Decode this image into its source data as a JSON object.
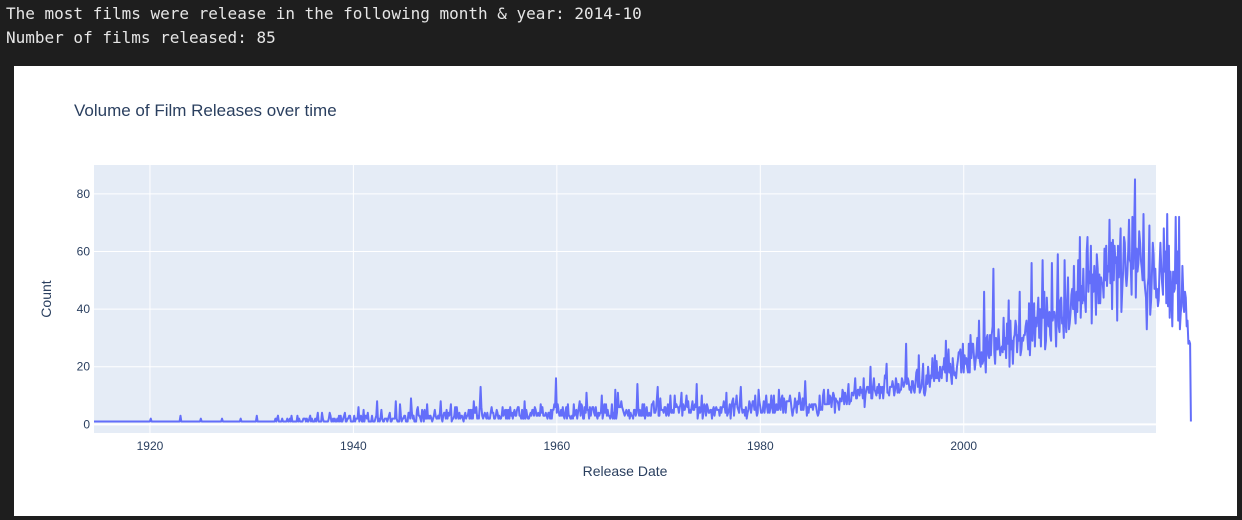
{
  "output": {
    "line1": "The most films were release in the following month & year: 2014-10",
    "line2": "Number of films released: 85"
  },
  "chart_data": {
    "type": "line",
    "title": "Volume of Film Releases over time",
    "xlabel": "Release Date",
    "ylabel": "Count",
    "xlim": [
      1914.5,
      2018.9
    ],
    "ylim": [
      -3,
      90
    ],
    "x_ticks": [
      "1920",
      "1940",
      "1960",
      "1980",
      "2000"
    ],
    "y_ticks": [
      "0",
      "20",
      "40",
      "60",
      "80"
    ],
    "grid": true,
    "line_color": "#636efa",
    "series": [
      {
        "x_start": "1914-07",
        "interval": "monthly",
        "values": [
          1,
          1,
          1,
          1,
          1,
          1,
          1,
          1,
          1,
          1,
          1,
          1,
          1,
          1,
          1,
          1,
          1,
          1,
          1,
          1,
          1,
          1,
          1,
          1,
          1,
          1,
          1,
          1,
          1,
          1,
          1,
          1,
          1,
          1,
          1,
          1,
          1,
          1,
          1,
          1,
          1,
          1,
          1,
          1,
          1,
          1,
          1,
          1,
          1,
          1,
          1,
          1,
          1,
          1,
          1,
          1,
          1,
          1,
          1,
          1,
          1,
          1,
          1,
          1,
          1,
          1,
          1,
          2,
          1,
          1,
          1,
          1,
          1,
          1,
          1,
          1,
          1,
          1,
          1,
          1,
          1,
          1,
          1,
          1,
          1,
          1,
          1,
          1,
          1,
          1,
          1,
          1,
          1,
          1,
          1,
          1,
          1,
          1,
          1,
          1,
          1,
          1,
          3,
          1,
          1,
          1,
          1,
          1,
          1,
          1,
          1,
          1,
          1,
          1,
          1,
          1,
          1,
          1,
          1,
          1,
          1,
          1,
          1,
          1,
          1,
          1,
          2,
          1,
          1,
          1,
          1,
          1,
          1,
          1,
          1,
          1,
          1,
          1,
          1,
          1,
          1,
          1,
          1,
          1,
          1,
          1,
          1,
          1,
          1,
          1,
          1,
          2,
          1,
          1,
          1,
          1,
          1,
          1,
          1,
          1,
          1,
          1,
          1,
          1,
          1,
          1,
          1,
          1,
          1,
          1,
          1,
          1,
          1,
          2,
          1,
          1,
          1,
          1,
          1,
          1,
          1,
          1,
          1,
          1,
          1,
          1,
          1,
          1,
          1,
          1,
          1,
          1,
          3,
          1,
          1,
          1,
          1,
          1,
          1,
          1,
          1,
          1,
          1,
          1,
          1,
          1,
          1,
          1,
          1,
          1,
          1,
          1,
          1,
          1,
          2,
          1,
          2,
          3,
          1,
          1,
          1,
          1,
          2,
          1,
          1,
          1,
          1,
          1,
          2,
          1,
          1,
          2,
          1,
          3,
          1,
          1,
          1,
          1,
          1,
          1,
          3,
          1,
          2,
          1,
          1,
          1,
          1,
          2,
          2,
          2,
          1,
          2,
          1,
          1,
          2,
          3,
          1,
          2,
          1,
          1,
          1,
          2,
          1,
          2,
          4,
          1,
          1,
          1,
          1,
          4,
          2,
          1,
          1,
          1,
          1,
          1,
          1,
          2,
          4,
          3,
          1,
          1,
          2,
          1,
          2,
          1,
          1,
          2,
          1,
          3,
          1,
          3,
          1,
          1,
          2,
          3,
          4,
          1,
          1,
          2,
          2,
          3,
          3,
          1,
          1,
          1,
          1,
          3,
          1,
          2,
          2,
          2,
          6,
          1,
          2,
          3,
          1,
          1,
          5,
          1,
          3,
          3,
          2,
          4,
          1,
          1,
          1,
          1,
          3,
          1,
          1,
          1,
          2,
          3,
          8,
          1,
          2,
          1,
          2,
          5,
          2,
          1,
          1,
          2,
          2,
          2,
          1,
          2,
          3,
          4,
          1,
          1,
          2,
          2,
          2,
          2,
          8,
          2,
          1,
          1,
          1,
          7,
          3,
          1,
          2,
          2,
          3,
          3,
          1,
          1,
          1,
          4,
          4,
          2,
          9,
          4,
          2,
          3,
          1,
          1,
          1,
          5,
          6,
          3,
          3,
          2,
          1,
          5,
          4,
          1,
          5,
          2,
          2,
          7,
          2,
          3,
          2,
          3,
          2,
          1,
          2,
          3,
          5,
          3,
          2,
          2,
          3,
          2,
          4,
          8,
          2,
          1,
          3,
          4,
          4,
          2,
          5,
          2,
          4,
          3,
          4,
          7,
          1,
          2,
          2,
          3,
          6,
          2,
          6,
          3,
          2,
          4,
          2,
          3,
          3,
          2,
          1,
          3,
          4,
          2,
          3,
          3,
          5,
          2,
          5,
          2,
          5,
          2,
          8,
          4,
          4,
          6,
          2,
          3,
          2,
          6,
          13,
          6,
          3,
          2,
          3,
          4,
          3,
          2,
          4,
          2,
          2,
          2,
          4,
          6,
          4,
          4,
          2,
          2,
          3,
          5,
          4,
          2,
          3,
          2,
          2,
          3,
          6,
          3,
          4,
          5,
          2,
          5,
          2,
          5,
          2,
          6,
          3,
          4,
          2,
          4,
          5,
          3,
          3,
          5,
          6,
          6,
          3,
          3,
          2,
          5,
          2,
          2,
          8,
          2,
          5,
          3,
          2,
          2,
          3,
          4,
          3,
          5,
          5,
          3,
          6,
          5,
          3,
          3,
          4,
          3,
          3,
          7,
          4,
          6,
          3,
          3,
          3,
          4,
          3,
          2,
          4,
          4,
          2,
          5,
          2,
          5,
          5,
          7,
          6,
          16,
          4,
          7,
          5,
          3,
          3,
          5,
          3,
          6,
          3,
          2,
          4,
          6,
          2,
          7,
          3,
          3,
          2,
          2,
          3,
          2,
          7,
          3,
          4,
          5,
          2,
          4,
          6,
          8,
          3,
          7,
          6,
          2,
          2,
          6,
          4,
          11,
          5,
          5,
          2,
          6,
          3,
          5,
          6,
          6,
          4,
          3,
          6,
          3,
          2,
          4,
          3,
          4,
          4,
          10,
          2,
          4,
          7,
          4,
          7,
          3,
          5,
          3,
          3,
          2,
          3,
          7,
          2,
          4,
          2,
          12,
          2,
          4,
          11,
          6,
          6,
          6,
          8,
          6,
          5,
          4,
          3,
          4,
          5,
          4,
          3,
          5,
          2,
          4,
          3,
          3,
          2,
          5,
          5,
          3,
          4,
          14,
          6,
          3,
          5,
          3,
          3,
          7,
          3,
          7,
          2,
          4,
          6,
          3,
          3,
          4,
          3,
          3,
          7,
          7,
          8,
          4,
          4,
          5,
          9,
          13,
          3,
          3,
          9,
          5,
          5,
          5,
          4,
          6,
          6,
          3,
          4,
          7,
          3,
          5,
          10,
          4,
          4,
          5,
          4,
          10,
          6,
          7,
          6,
          6,
          4,
          6,
          7,
          11,
          3,
          7,
          5,
          5,
          7,
          10,
          6,
          8,
          4,
          5,
          4,
          6,
          8,
          5,
          5,
          7,
          6,
          14,
          2,
          4,
          6,
          4,
          5,
          10,
          2,
          4,
          7,
          6,
          3,
          7,
          6,
          4,
          4,
          5,
          5,
          2,
          5,
          6,
          3,
          5,
          6,
          5,
          5,
          5,
          3,
          6,
          4,
          6,
          6,
          8,
          6,
          4,
          11,
          3,
          4,
          5,
          7,
          2,
          6,
          8,
          9,
          3,
          7,
          7,
          10,
          6,
          5,
          4,
          8,
          13,
          6,
          4,
          5,
          5,
          3,
          6,
          2,
          4,
          5,
          8,
          7,
          4,
          6,
          8,
          8,
          5,
          10,
          5,
          3,
          4,
          12,
          8,
          6,
          4,
          4,
          5,
          8,
          4,
          7,
          10,
          6,
          4,
          7,
          4,
          6,
          10,
          6,
          4,
          10,
          4,
          5,
          7,
          5,
          5,
          12,
          6,
          5,
          9,
          10,
          4,
          9,
          7,
          4,
          8,
          8,
          8,
          8,
          10,
          8,
          5,
          3,
          5,
          6,
          9,
          7,
          4,
          8,
          7,
          11,
          9,
          5,
          5,
          9,
          5,
          8,
          15,
          7,
          3,
          6,
          4,
          7,
          6,
          6,
          7,
          5,
          7,
          7,
          7,
          6,
          4,
          3,
          4,
          10,
          5,
          6,
          5,
          10,
          12,
          7,
          7,
          7,
          7,
          12,
          7,
          10,
          9,
          6,
          9,
          11,
          10,
          4,
          9,
          8,
          8,
          7,
          5,
          9,
          8,
          8,
          12,
          11,
          7,
          11,
          9,
          7,
          10,
          14,
          7,
          8,
          8,
          11,
          11,
          10,
          12,
          16,
          9,
          9,
          12,
          12,
          10,
          13,
          11,
          12,
          9,
          16,
          6,
          10,
          12,
          13,
          13,
          11,
          11,
          20,
          9,
          9,
          13,
          16,
          12,
          11,
          10,
          13,
          11,
          14,
          9,
          13,
          11,
          13,
          9,
          13,
          17,
          16,
          21,
          11,
          11,
          10,
          13,
          13,
          13,
          15,
          13,
          10,
          12,
          16,
          14,
          11,
          14,
          11,
          12,
          12,
          16,
          15,
          13,
          14,
          15,
          28,
          14,
          16,
          15,
          12,
          13,
          11,
          15,
          15,
          12,
          11,
          14,
          18,
          19,
          13,
          24,
          11,
          12,
          13,
          16,
          21,
          11,
          10,
          12,
          17,
          14,
          20,
          16,
          13,
          17,
          16,
          23,
          18,
          15,
          24,
          16,
          22,
          16,
          18,
          15,
          20,
          17,
          16,
          20,
          19,
          23,
          18,
          29,
          15,
          21,
          26,
          18,
          21,
          17,
          14,
          23,
          19,
          17,
          18,
          16,
          20,
          22,
          25,
          25,
          26,
          18,
          21,
          28,
          18,
          24,
          21,
          23,
          20,
          18,
          28,
          18,
          31,
          23,
          28,
          28,
          24,
          19,
          22,
          25,
          30,
          23,
          36,
          22,
          20,
          25,
          21,
          22,
          46,
          24,
          18,
          30,
          31,
          24,
          23,
          31,
          24,
          31,
          34,
          54,
          25,
          21,
          30,
          26,
          26,
          33,
          28,
          24,
          26,
          27,
          25,
          37,
          26,
          30,
          23,
          35,
          28,
          43,
          20,
          36,
          26,
          29,
          21,
          30,
          31,
          36,
          34,
          25,
          31,
          29,
          46,
          24,
          26,
          30,
          29,
          31,
          31,
          34,
          36,
          31,
          26,
          42,
          24,
          32,
          56,
          29,
          38,
          42,
          27,
          37,
          34,
          38,
          44,
          30,
          40,
          27,
          37,
          57,
          37,
          46,
          26,
          29,
          44,
          36,
          34,
          39,
          31,
          29,
          56,
          36,
          39,
          39,
          36,
          27,
          42,
          59,
          34,
          32,
          43,
          44,
          35,
          37,
          30,
          57,
          36,
          32,
          43,
          51,
          33,
          35,
          39,
          45,
          47,
          40,
          55,
          39,
          35,
          46,
          39,
          57,
          43,
          65,
          37,
          48,
          42,
          54,
          43,
          43,
          39,
          60,
          65,
          46,
          53,
          49,
          62,
          35,
          52,
          46,
          55,
          50,
          38,
          59,
          54,
          42,
          52,
          42,
          51,
          49,
          49,
          44,
          61,
          50,
          62,
          48,
          55,
          53,
          71,
          49,
          63,
          40,
          64,
          50,
          62,
          56,
          58,
          36,
          62,
          51,
          58,
          68,
          39,
          47,
          53,
          65,
          63,
          52,
          48,
          52,
          60,
          71,
          57,
          56,
          45,
          72,
          54,
          66,
          85,
          44,
          61,
          53,
          56,
          67,
          63,
          57,
          54,
          50,
          73,
          51,
          47,
          44,
          33,
          48,
          51,
          69,
          38,
          43,
          52,
          63,
          59,
          47,
          54,
          44,
          47,
          41,
          43,
          55,
          63,
          54,
          49,
          45,
          68,
          53,
          60,
          42,
          73,
          41,
          62,
          37,
          53,
          45,
          34,
          53,
          46,
          47,
          72,
          49,
          60,
          36,
          72,
          33,
          39,
          41,
          55,
          45,
          39,
          46,
          44,
          34,
          36,
          28,
          29,
          28,
          1
        ]
      }
    ]
  }
}
